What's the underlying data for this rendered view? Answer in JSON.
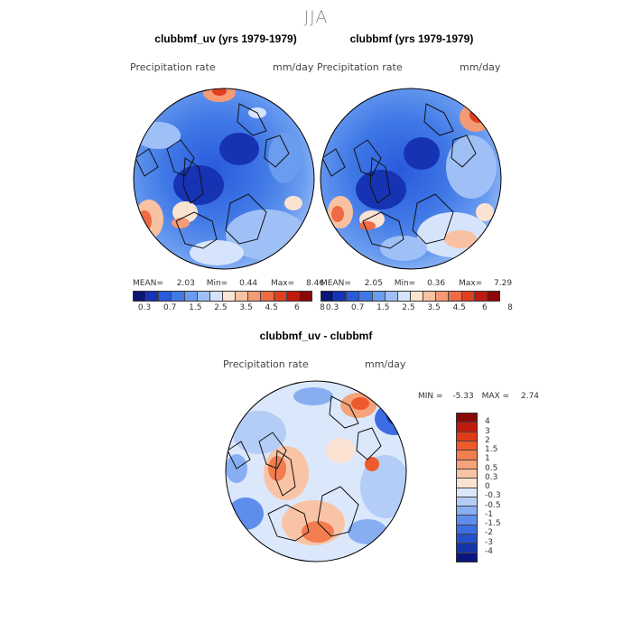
{
  "season": "JJA",
  "panel1": {
    "title": "clubbmf_uv (yrs 1979-1979)",
    "variable": "Precipitation rate",
    "units": "mm/day",
    "mean_label": "MEAN=",
    "mean": "2.03",
    "min_label": "Min=",
    "min": "0.44",
    "max_label": "Max=",
    "max": "8.46"
  },
  "panel2": {
    "title": "clubbmf (yrs 1979-1979)",
    "variable": "Precipitation rate",
    "units": "mm/day",
    "mean_label": "MEAN=",
    "mean": "2.05",
    "min_label": "Min=",
    "min": "0.36",
    "max_label": "Max=",
    "max": "7.29"
  },
  "panel3": {
    "title": "clubbmf_uv - clubbmf",
    "variable": "Precipitation rate",
    "units": "mm/day",
    "min_label": "MIN =",
    "min": "-5.33",
    "max_label": "MAX =",
    "max": "2.74"
  },
  "colorbar_top": {
    "colors": [
      "#0a1672",
      "#1633b4",
      "#2a5adc",
      "#3f78e6",
      "#6a9cf0",
      "#9fc0f6",
      "#d6e4fb",
      "#fbe3d2",
      "#f8c2a2",
      "#f49a75",
      "#ee6b45",
      "#e04020",
      "#c01a0d",
      "#8a0808"
    ],
    "ticks": [
      "0.3",
      "0.7",
      "1.5",
      "2.5",
      "3.5",
      "4.5",
      "6",
      "8"
    ]
  },
  "colorbar_diff": {
    "colors": [
      "#8a0808",
      "#c01a0d",
      "#e03a17",
      "#ee5a2c",
      "#f27d4f",
      "#f6a27a",
      "#f9c4a6",
      "#fbe2d2",
      "#dbe8fb",
      "#b4cdf7",
      "#88aef2",
      "#5f8ded",
      "#3d6de3",
      "#2450cc",
      "#1535a8",
      "#0a1680"
    ],
    "ticks": [
      "4",
      "3",
      "2",
      "1.5",
      "1",
      "0.5",
      "0.3",
      "0",
      "-0.3",
      "-0.5",
      "-1",
      "-1.5",
      "-2",
      "-3",
      "-4"
    ]
  }
}
